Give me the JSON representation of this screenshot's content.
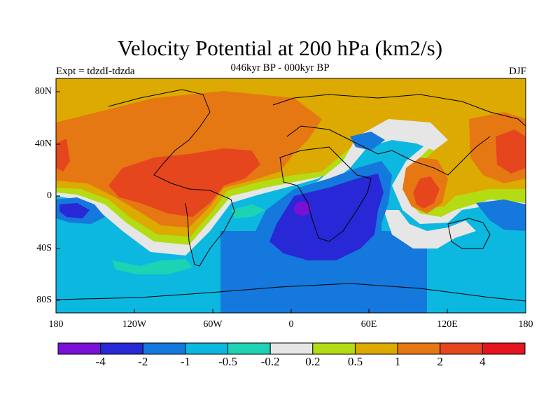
{
  "title": "Velocity Potential at 200 hPa (km2/s)",
  "subtitle": "046kyr BP - 000kyr BP",
  "left_label": "Expt = tdzdI-tdzda",
  "right_label": "DJF",
  "lat_ticks": [
    "80N",
    "40N",
    "0",
    "40S",
    "80S"
  ],
  "lon_ticks": [
    "180",
    "120W",
    "60W",
    "0",
    "60E",
    "120E",
    "180"
  ],
  "colorbar": {
    "labels": [
      "-4",
      "-2",
      "-1",
      "-0.5",
      "-0.2",
      "0.2",
      "0.5",
      "1",
      "2",
      "4"
    ],
    "colors": [
      "#7a10d6",
      "#2828d6",
      "#1478dc",
      "#0cb8e0",
      "#1ed2b4",
      "#e6e6e6",
      "#b4dc14",
      "#dcaa00",
      "#e67814",
      "#e6461e",
      "#e6141e"
    ]
  }
}
